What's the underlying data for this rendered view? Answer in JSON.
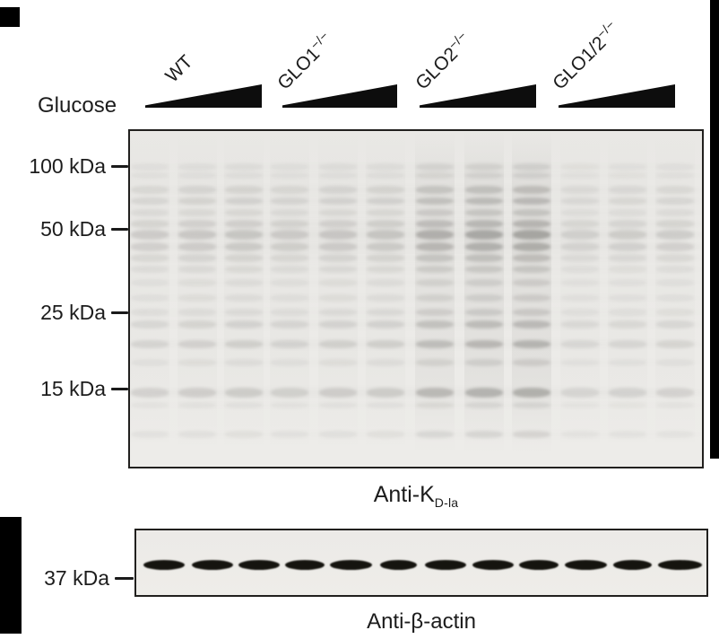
{
  "colors": {
    "text": "#1c1c1c",
    "blot_border": "#21201e",
    "blot_bg": "#eae9e6",
    "band": "52,50,46",
    "smear": "60,58,54",
    "actin_band": "#15140f",
    "wedge": "#0d0d0d",
    "crop_bar": "#000000"
  },
  "figure": {
    "glucose_label": "Glucose",
    "groups": [
      {
        "name": "WT",
        "sup": ""
      },
      {
        "name": "GLO1",
        "sup": "−/−"
      },
      {
        "name": "GLO2",
        "sup": "−/−"
      },
      {
        "name": "GLO1/2",
        "sup": "−/−"
      }
    ],
    "main_markers": [
      "100 kDa",
      "50 kDa",
      "25 kDa",
      "15 kDa"
    ],
    "main_antibody": {
      "base": "Anti-K",
      "sub": "D-la"
    },
    "actin_marker": "37 kDa",
    "actin_antibody": "Anti-β-actin"
  },
  "blot_render": {
    "lanes_per_group": 3,
    "lane_width": 44,
    "lane_centers": [
      167,
      220,
      272,
      323,
      377,
      430,
      485,
      540,
      593,
      647,
      700,
      753
    ],
    "bands": [
      [
        186,
        8,
        0.045
      ],
      [
        196,
        7,
        0.04
      ],
      [
        212,
        9,
        0.085
      ],
      [
        224,
        8,
        0.095
      ],
      [
        237,
        8,
        0.07
      ],
      [
        250,
        9,
        0.105
      ],
      [
        262,
        11,
        0.145
      ],
      [
        275,
        10,
        0.125
      ],
      [
        288,
        9,
        0.085
      ],
      [
        300,
        8,
        0.065
      ],
      [
        315,
        8,
        0.05
      ],
      [
        332,
        8,
        0.05
      ],
      [
        348,
        8,
        0.06
      ],
      [
        362,
        9,
        0.095
      ],
      [
        384,
        9,
        0.11
      ],
      [
        404,
        8,
        0.05
      ],
      [
        438,
        11,
        0.125
      ],
      [
        452,
        7,
        0.04
      ],
      [
        484,
        8,
        0.048
      ]
    ],
    "group_mult": [
      1.0,
      1.02,
      2.05,
      0.8
    ],
    "lane_mult": [
      0.88,
      1.0,
      1.06
    ],
    "group_smear": [
      0.018,
      0.02,
      0.055,
      0.016
    ],
    "ghost_band_factor": 0.18,
    "actin_band_centers": [
      183,
      237,
      289,
      340,
      392,
      445,
      497,
      550,
      601,
      654,
      706,
      759
    ],
    "actin_band_widths": [
      46,
      46,
      46,
      44,
      47,
      41,
      46,
      46,
      44,
      47,
      43,
      49
    ]
  }
}
